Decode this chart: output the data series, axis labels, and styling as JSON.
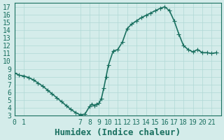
{
  "xlabel": "Humidex (Indice chaleur)",
  "ylabel": "",
  "background_color": "#d4ecea",
  "grid_color": "#b0d8d5",
  "line_color": "#1a7060",
  "xlim": [
    0,
    22
  ],
  "ylim": [
    3,
    17.5
  ],
  "yticks": [
    3,
    4,
    5,
    6,
    7,
    8,
    9,
    10,
    11,
    12,
    13,
    14,
    15,
    16,
    17
  ],
  "xticks": [
    0,
    1,
    7,
    8,
    9,
    10,
    11,
    12,
    13,
    14,
    15,
    16,
    17,
    18,
    19,
    20,
    21
  ],
  "x": [
    0,
    0.5,
    1,
    1.5,
    2,
    2.5,
    3,
    3.5,
    4,
    4.5,
    5,
    5.5,
    6,
    6.5,
    7,
    7.5,
    8,
    8.25,
    8.5,
    8.75,
    9,
    9.25,
    9.5,
    9.75,
    10,
    10.5,
    11,
    11.5,
    12,
    12.5,
    13,
    13.5,
    14,
    14.5,
    15,
    15.5,
    16,
    16.5,
    17,
    17.5,
    18,
    18.5,
    19,
    19.5,
    20,
    20.5,
    21,
    21.5
  ],
  "y": [
    8.5,
    8.2,
    8.1,
    7.9,
    7.6,
    7.2,
    6.8,
    6.3,
    5.8,
    5.3,
    4.8,
    4.3,
    3.8,
    3.4,
    3.1,
    3.2,
    4.2,
    4.5,
    4.3,
    4.5,
    4.6,
    5.2,
    6.5,
    8.0,
    9.5,
    11.3,
    11.5,
    12.5,
    14.2,
    14.8,
    15.2,
    15.6,
    15.9,
    16.2,
    16.5,
    16.8,
    17.0,
    16.5,
    15.2,
    13.5,
    12.0,
    11.5,
    11.2,
    11.5,
    11.1,
    11.1,
    11.0,
    11.1
  ],
  "marker": "+",
  "markersize": 4,
  "linewidth": 1.2,
  "xlabel_fontsize": 9,
  "tick_fontsize": 7,
  "tick_color": "#1a7060",
  "axis_color": "#1a7060"
}
